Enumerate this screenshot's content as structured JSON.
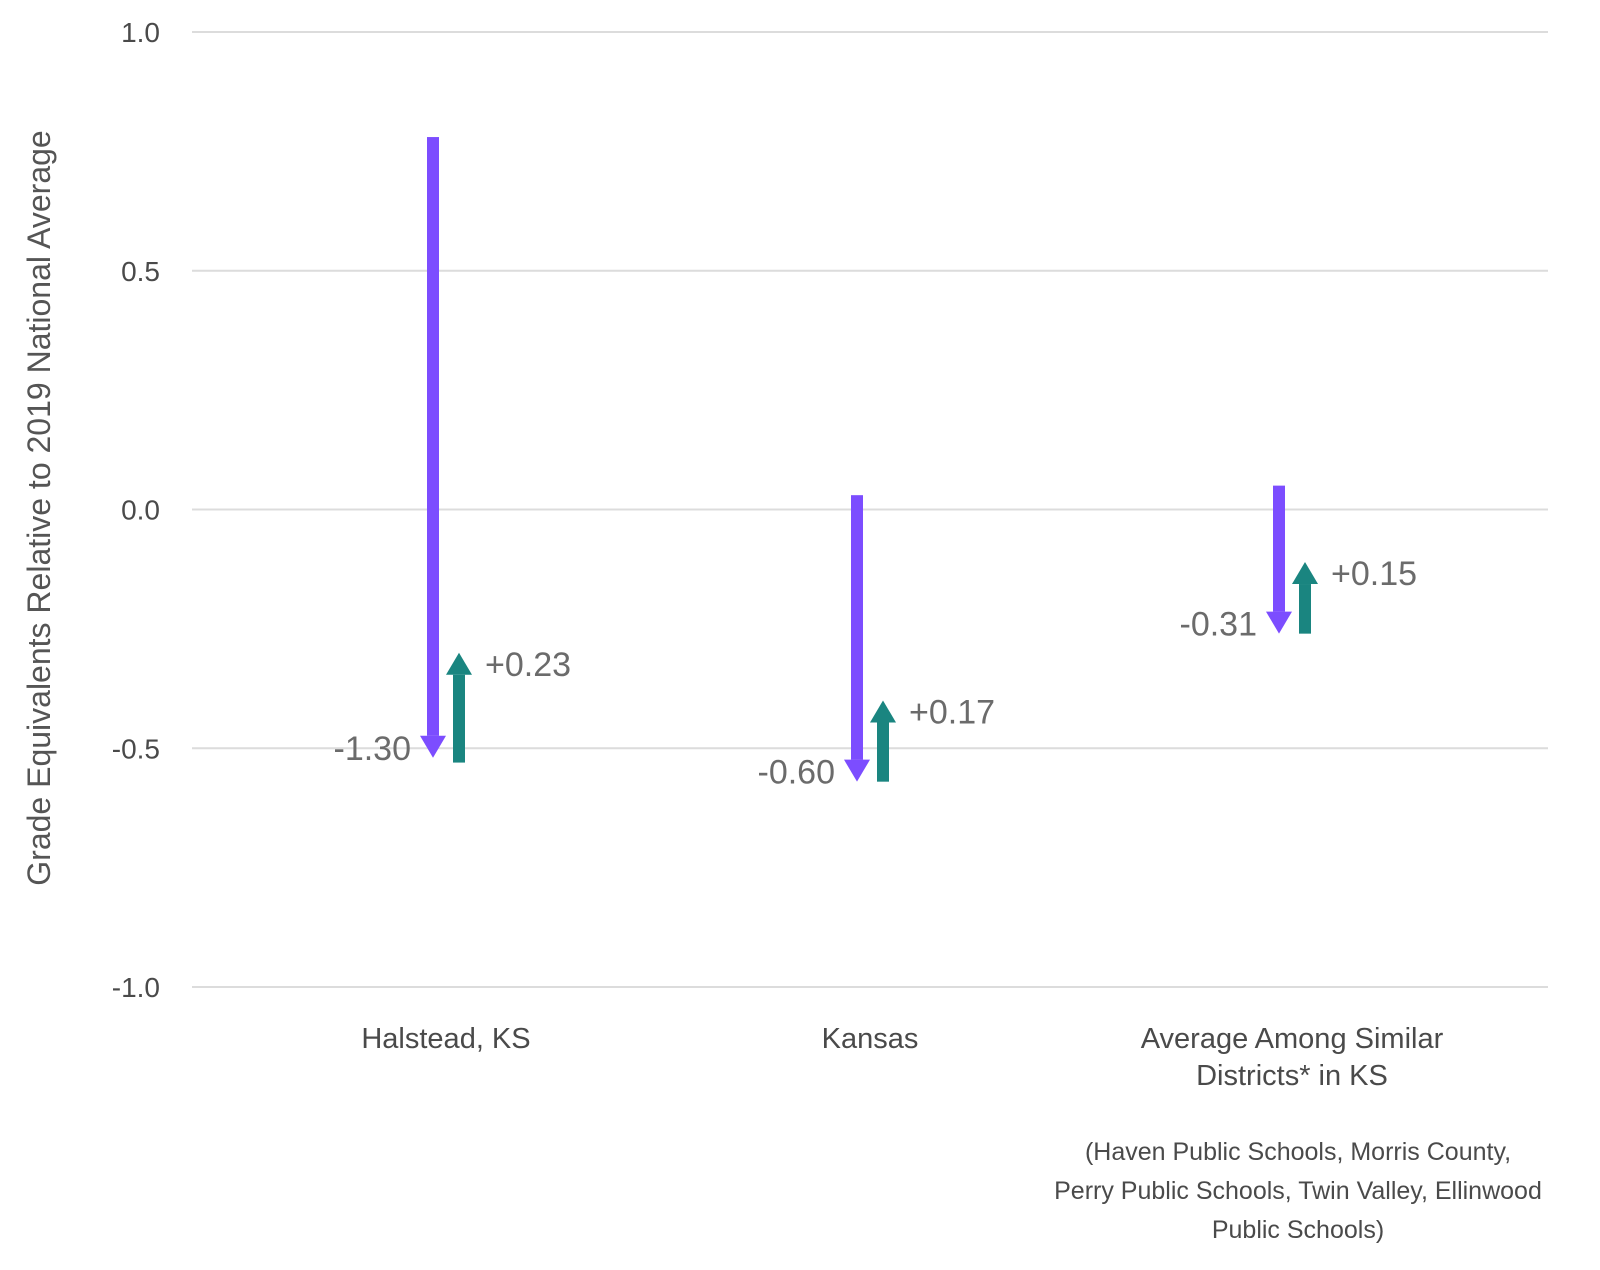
{
  "chart_data": {
    "type": "arrow-range",
    "ylabel": "Grade Equivalents Relative to 2019 National Average",
    "ylim": [
      -1.0,
      1.0
    ],
    "yticks": [
      {
        "value": 1.0,
        "label": "1.0"
      },
      {
        "value": 0.5,
        "label": "0.5"
      },
      {
        "value": 0.0,
        "label": "0.0"
      },
      {
        "value": -0.5,
        "label": "-0.5"
      },
      {
        "value": -1.0,
        "label": "-1.0"
      }
    ],
    "grid": true,
    "categories": [
      {
        "lines": [
          "Halstead, KS"
        ]
      },
      {
        "lines": [
          "Kansas"
        ]
      },
      {
        "lines": [
          "Average Among Similar",
          "Districts* in KS"
        ]
      }
    ],
    "series": [
      {
        "change": "decline",
        "color": "#7c4dff",
        "points": [
          {
            "start": 0.78,
            "end": -0.52,
            "label": "-1.30"
          },
          {
            "start": 0.03,
            "end": -0.57,
            "label": "-0.60"
          },
          {
            "start": 0.05,
            "end": -0.26,
            "label": "-0.31"
          }
        ]
      },
      {
        "change": "recovery",
        "color": "#1a8580",
        "points": [
          {
            "start": -0.53,
            "end": -0.3,
            "label": "+0.23"
          },
          {
            "start": -0.57,
            "end": -0.4,
            "label": "+0.17"
          },
          {
            "start": -0.26,
            "end": -0.11,
            "label": "+0.15"
          }
        ]
      }
    ],
    "footnote_lines": [
      "(Haven Public Schools, Morris County,",
      "Perry Public Schools, Twin Valley, Ellinwood",
      "Public Schools)"
    ]
  }
}
